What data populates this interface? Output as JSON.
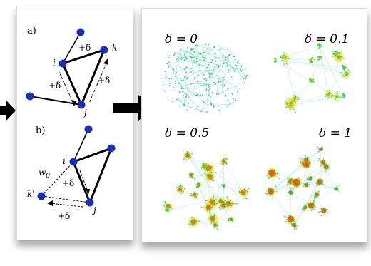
{
  "left_panel": {
    "panel_a": {
      "label": "a)",
      "node_i": "i",
      "node_j": "j",
      "node_k": "k",
      "edge_labels": [
        "+δ",
        "+δ",
        "+δ"
      ]
    },
    "panel_b": {
      "label": "b)",
      "node_i": "i",
      "node_j": "j",
      "node_k_prime": "k'",
      "edge_w0": "w",
      "edge_w0_sub": "0",
      "edge_labels": [
        "+δ",
        "+δ"
      ]
    }
  },
  "right_panel": {
    "networks": [
      {
        "label": "δ = 0"
      },
      {
        "label": "δ = 0.1"
      },
      {
        "label": "δ = 0.5"
      },
      {
        "label": "δ = 1"
      }
    ]
  },
  "colors": {
    "node_blue": "#1a2fb8",
    "arrow_black": "#000000",
    "net_green": "#22c48a",
    "net_yellow": "#e8e000",
    "net_red": "#e03000"
  }
}
